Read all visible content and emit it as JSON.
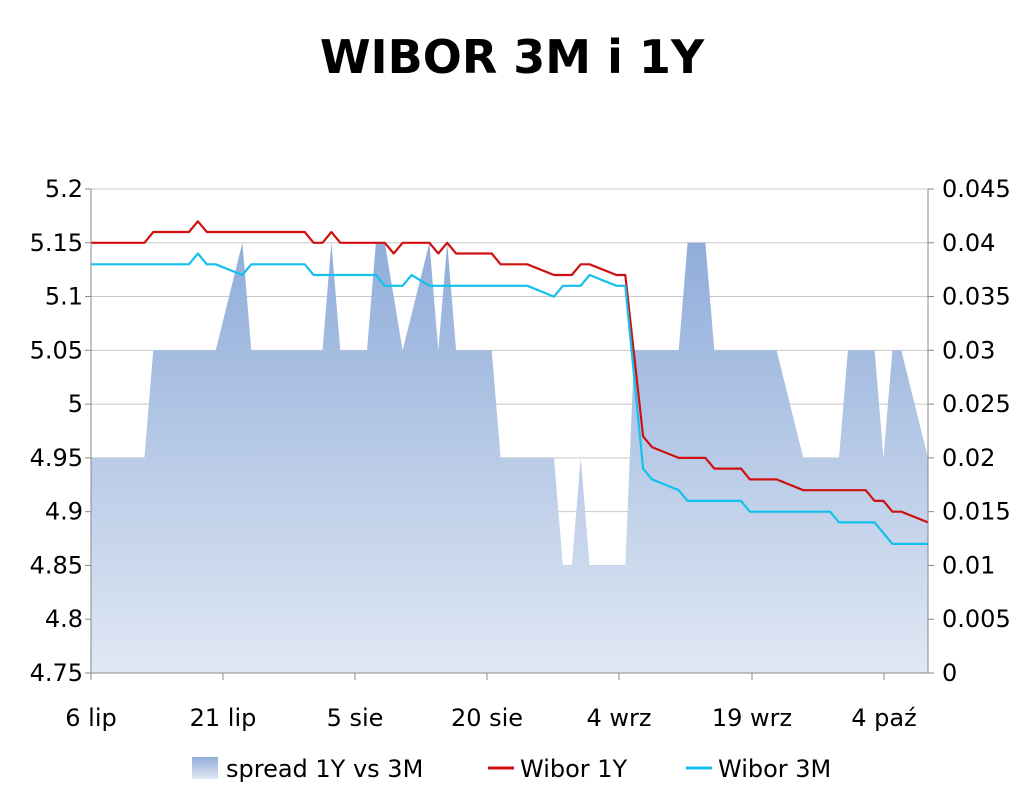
{
  "chart_data": {
    "type": "line",
    "title": "WIBOR 3M i 1Y",
    "xlabel": "",
    "ylabel": "",
    "x_ticks": [
      "6 lip",
      "21 lip",
      "5 sie",
      "20 sie",
      "4 wrz",
      "19 wrz",
      "4 paź"
    ],
    "y_left": {
      "ylim": [
        4.75,
        5.2
      ],
      "ticks": [
        "5.2",
        "5.15",
        "5.1",
        "5.05",
        "5",
        "4.95",
        "4.9",
        "4.85",
        "4.8",
        "4.75"
      ]
    },
    "y_right": {
      "ylim": [
        0,
        0.045
      ],
      "ticks": [
        "0.045",
        "0.04",
        "0.035",
        "0.03",
        "0.025",
        "0.02",
        "0.015",
        "0.01",
        "0.005",
        "0"
      ]
    },
    "grid": true,
    "legend_position": "bottom",
    "x_day_range": [
      0,
      94
    ],
    "series": [
      {
        "name": "spread 1Y vs 3M",
        "kind": "area",
        "axis": "right",
        "color": "#98B4DE",
        "points": [
          [
            0,
            0.02
          ],
          [
            6,
            0.02
          ],
          [
            7,
            0.03
          ],
          [
            14,
            0.03
          ],
          [
            17,
            0.04
          ],
          [
            18,
            0.03
          ],
          [
            26,
            0.03
          ],
          [
            27,
            0.04
          ],
          [
            28,
            0.03
          ],
          [
            31,
            0.03
          ],
          [
            32,
            0.04
          ],
          [
            33,
            0.04
          ],
          [
            35,
            0.03
          ],
          [
            38,
            0.04
          ],
          [
            39,
            0.03
          ],
          [
            40,
            0.04
          ],
          [
            41,
            0.03
          ],
          [
            45,
            0.03
          ],
          [
            46,
            0.02
          ],
          [
            52,
            0.02
          ],
          [
            53,
            0.01
          ],
          [
            54,
            0.01
          ],
          [
            55,
            0.02
          ],
          [
            56,
            0.01
          ],
          [
            60,
            0.01
          ],
          [
            61,
            0.03
          ],
          [
            66,
            0.03
          ],
          [
            67,
            0.04
          ],
          [
            69,
            0.04
          ],
          [
            70,
            0.03
          ],
          [
            77,
            0.03
          ],
          [
            80,
            0.02
          ],
          [
            84,
            0.02
          ],
          [
            85,
            0.03
          ],
          [
            88,
            0.03
          ],
          [
            89,
            0.02
          ],
          [
            90,
            0.03
          ],
          [
            91,
            0.03
          ],
          [
            94,
            0.02
          ]
        ]
      },
      {
        "name": "Wibor 1Y",
        "kind": "line",
        "axis": "left",
        "color": "#D01010",
        "points": [
          [
            0,
            5.15
          ],
          [
            6,
            5.15
          ],
          [
            7,
            5.16
          ],
          [
            11,
            5.16
          ],
          [
            12,
            5.17
          ],
          [
            13,
            5.16
          ],
          [
            24,
            5.16
          ],
          [
            25,
            5.15
          ],
          [
            26,
            5.15
          ],
          [
            27,
            5.16
          ],
          [
            28,
            5.15
          ],
          [
            33,
            5.15
          ],
          [
            34,
            5.14
          ],
          [
            35,
            5.15
          ],
          [
            38,
            5.15
          ],
          [
            39,
            5.14
          ],
          [
            40,
            5.15
          ],
          [
            41,
            5.14
          ],
          [
            45,
            5.14
          ],
          [
            46,
            5.13
          ],
          [
            49,
            5.13
          ],
          [
            52,
            5.12
          ],
          [
            54,
            5.12
          ],
          [
            55,
            5.13
          ],
          [
            56,
            5.13
          ],
          [
            59,
            5.12
          ],
          [
            60,
            5.12
          ],
          [
            62,
            4.97
          ],
          [
            63,
            4.96
          ],
          [
            66,
            4.95
          ],
          [
            69,
            4.95
          ],
          [
            70,
            4.94
          ],
          [
            73,
            4.94
          ],
          [
            74,
            4.93
          ],
          [
            77,
            4.93
          ],
          [
            80,
            4.92
          ],
          [
            87,
            4.92
          ],
          [
            88,
            4.91
          ],
          [
            89,
            4.91
          ],
          [
            90,
            4.9
          ],
          [
            91,
            4.9
          ],
          [
            94,
            4.89
          ]
        ]
      },
      {
        "name": "Wibor 3M",
        "kind": "line",
        "axis": "left",
        "color": "#14C0EC",
        "points": [
          [
            0,
            5.13
          ],
          [
            11,
            5.13
          ],
          [
            12,
            5.14
          ],
          [
            13,
            5.13
          ],
          [
            14,
            5.13
          ],
          [
            17,
            5.12
          ],
          [
            18,
            5.13
          ],
          [
            24,
            5.13
          ],
          [
            25,
            5.12
          ],
          [
            32,
            5.12
          ],
          [
            33,
            5.11
          ],
          [
            35,
            5.11
          ],
          [
            36,
            5.12
          ],
          [
            37,
            5.115
          ],
          [
            38,
            5.11
          ],
          [
            49,
            5.11
          ],
          [
            52,
            5.1
          ],
          [
            53,
            5.11
          ],
          [
            55,
            5.11
          ],
          [
            56,
            5.12
          ],
          [
            59,
            5.11
          ],
          [
            60,
            5.11
          ],
          [
            62,
            4.94
          ],
          [
            63,
            4.93
          ],
          [
            66,
            4.92
          ],
          [
            67,
            4.91
          ],
          [
            73,
            4.91
          ],
          [
            74,
            4.9
          ],
          [
            83,
            4.9
          ],
          [
            84,
            4.89
          ],
          [
            88,
            4.89
          ],
          [
            90,
            4.87
          ],
          [
            94,
            4.87
          ]
        ]
      }
    ]
  }
}
